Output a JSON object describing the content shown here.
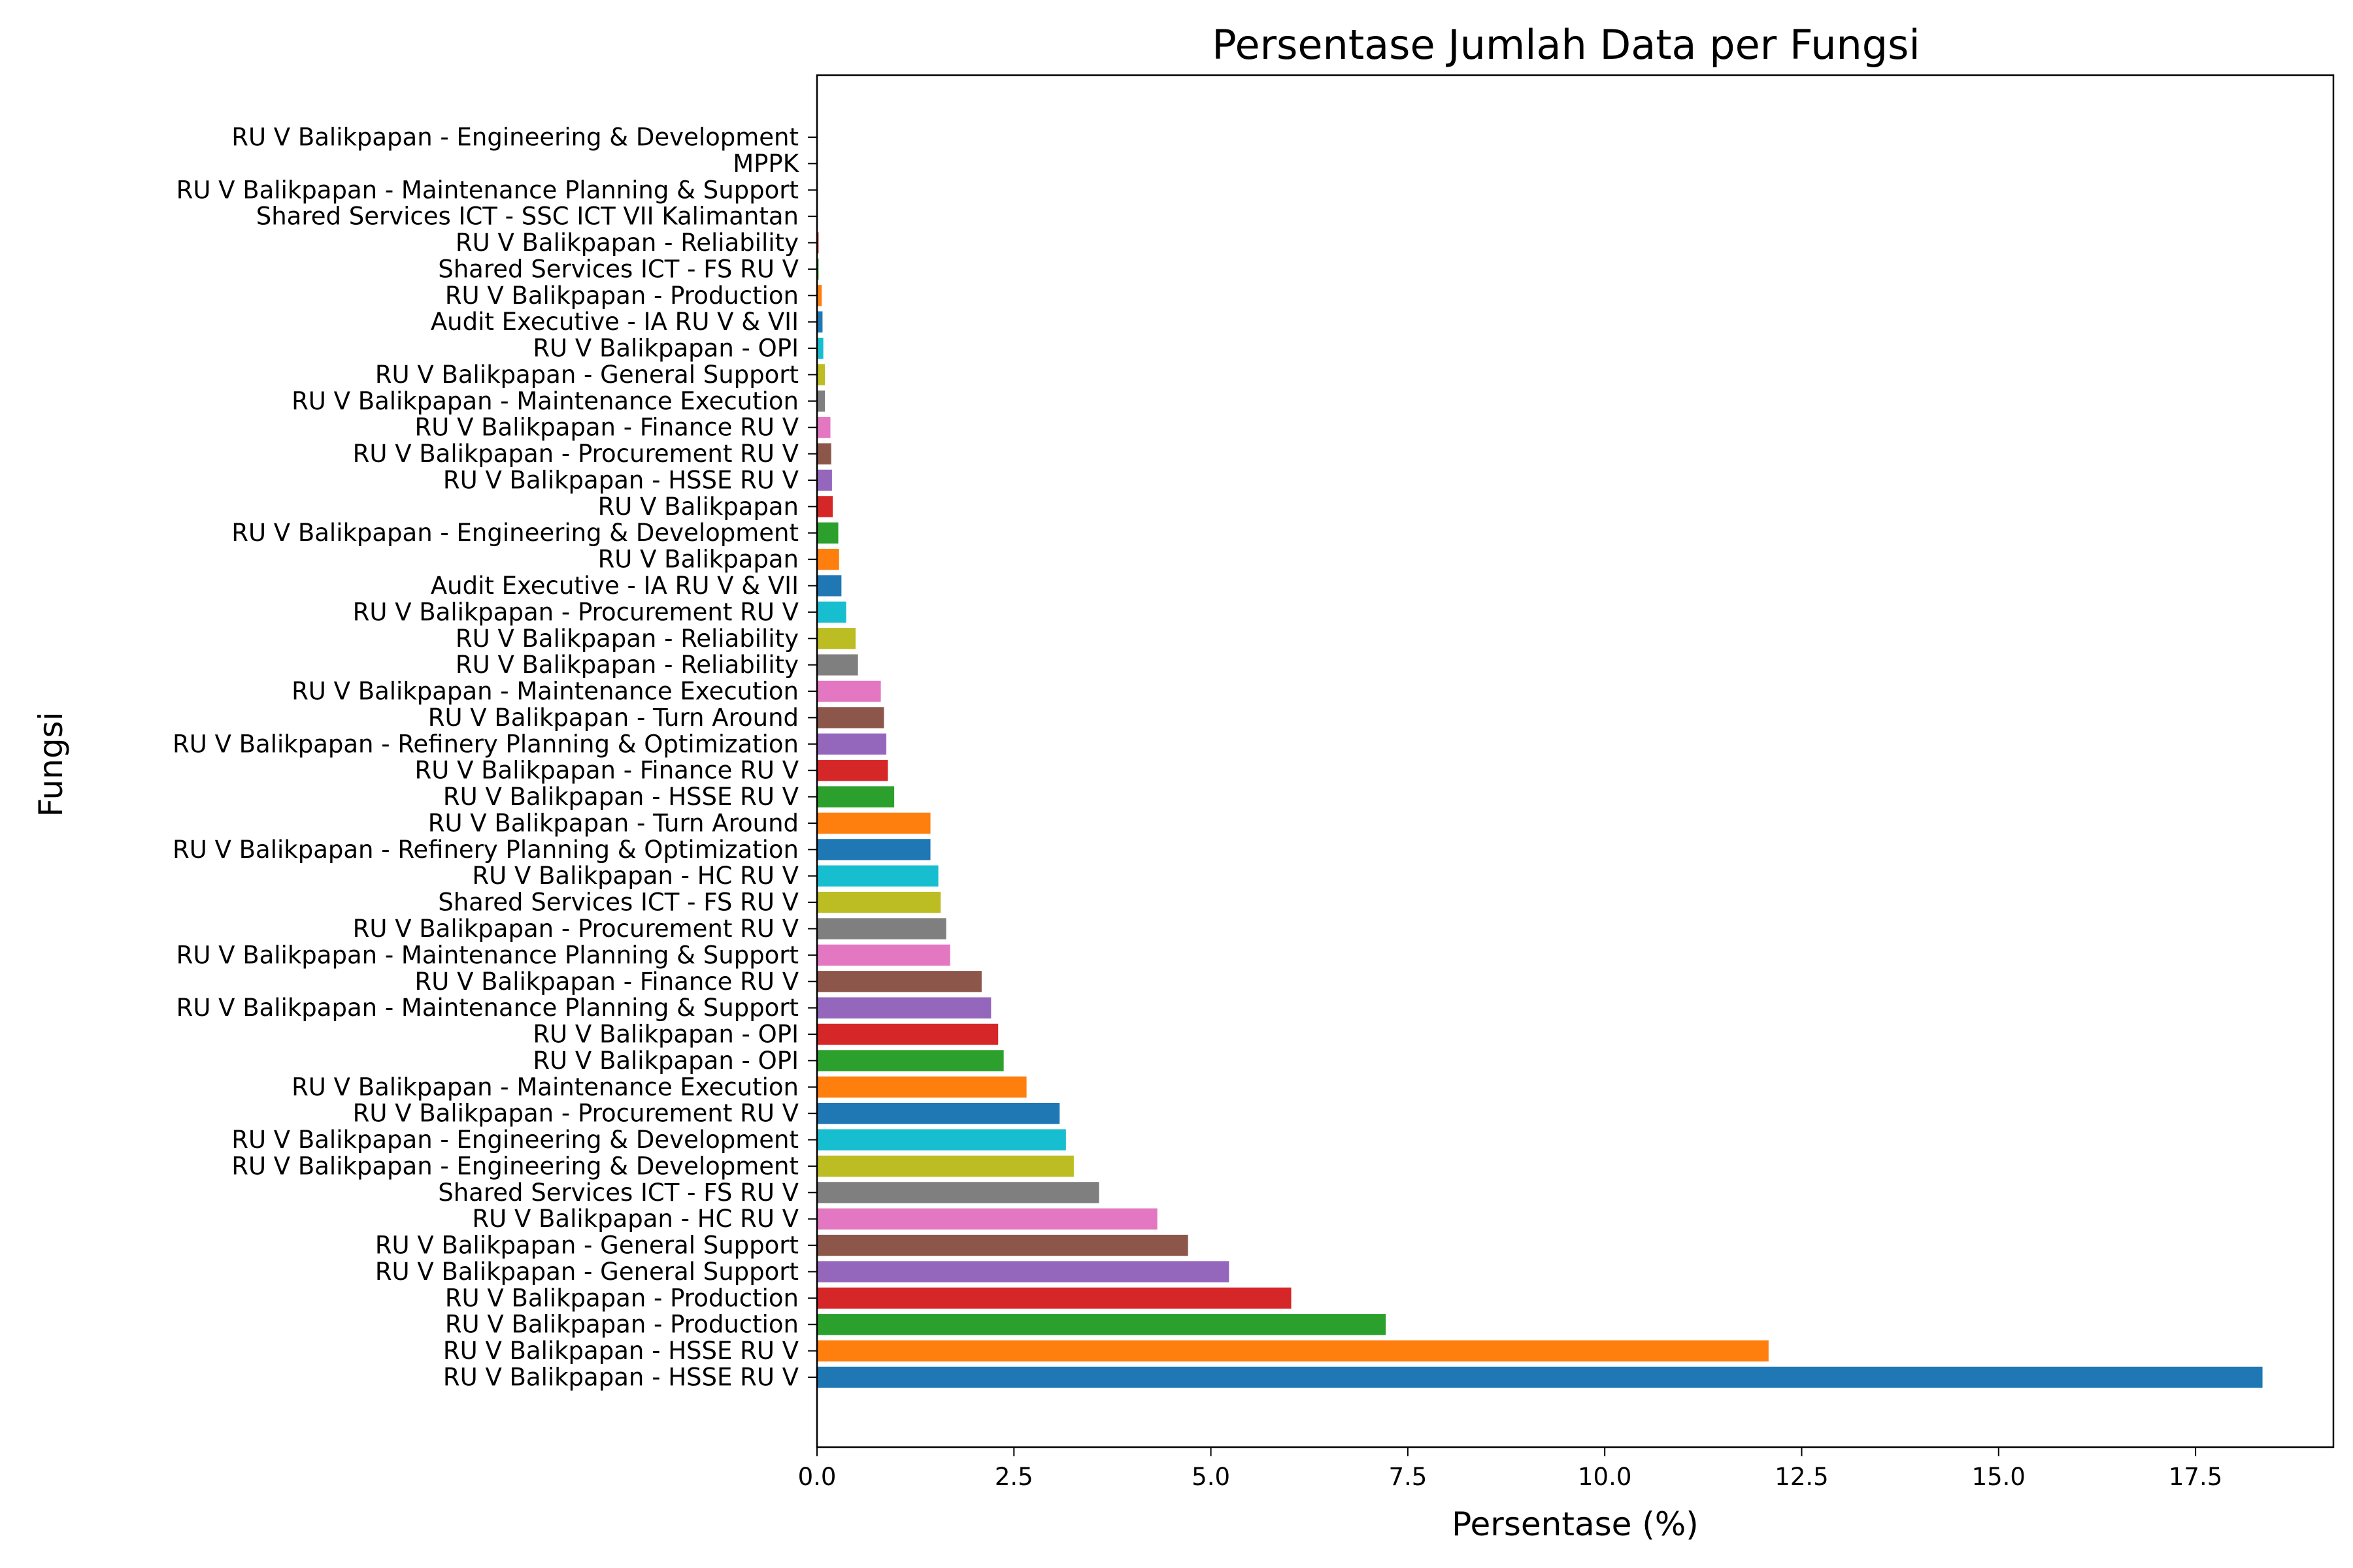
{
  "chart_data": {
    "type": "bar",
    "orientation": "horizontal",
    "title": "Persentase Jumlah Data per Fungsi",
    "xlabel": "Persentase (%)",
    "ylabel": "Fungsi",
    "xlim": [
      0,
      19.25
    ],
    "xticks": [
      0,
      2.5,
      5,
      7.5,
      10,
      12.5,
      15,
      17.5
    ],
    "xtick_labels": [
      "0.0",
      "2.5",
      "5.0",
      "7.5",
      "10.0",
      "12.5",
      "15.0",
      "17.5"
    ],
    "grid": false,
    "legend": false,
    "colors": [
      "#1f77b4",
      "#ff7f0e",
      "#2ca02c",
      "#d62728",
      "#9467bd",
      "#8c564b",
      "#e377c2",
      "#7f7f7f",
      "#bcbd22",
      "#17becf"
    ],
    "categories": [
      "RU V Balikpapan - HSSE RU V",
      "RU V Balikpapan - HSSE RU V",
      "RU V Balikpapan - Production",
      "RU V Balikpapan - Production",
      "RU V Balikpapan - General Support",
      "RU V Balikpapan - General Support",
      "RU V Balikpapan - HC RU V",
      "Shared Services ICT - FS RU V",
      "RU V Balikpapan - Engineering & Development",
      "RU V Balikpapan - Engineering & Development",
      "RU V Balikpapan - Procurement RU V",
      "RU V Balikpapan - Maintenance Execution",
      "RU V Balikpapan - OPI",
      "RU V Balikpapan - OPI",
      "RU V Balikpapan - Maintenance Planning & Support",
      "RU V Balikpapan - Finance RU V",
      "RU V Balikpapan - Maintenance Planning & Support",
      "RU V Balikpapan - Procurement RU V",
      "Shared Services ICT - FS RU V",
      "RU V Balikpapan - HC RU V",
      "RU V Balikpapan - Refinery Planning & Optimization",
      "RU V Balikpapan - Turn Around",
      "RU V Balikpapan - HSSE RU V",
      "RU V Balikpapan - Finance RU V",
      "RU V Balikpapan - Refinery Planning & Optimization",
      "RU V Balikpapan - Turn Around",
      "RU V Balikpapan - Maintenance Execution",
      "RU V Balikpapan - Reliability",
      "RU V Balikpapan - Reliability",
      "RU V Balikpapan - Procurement RU V",
      "Audit Executive - IA RU V & VII",
      "RU V Balikpapan",
      "RU V Balikpapan - Engineering & Development",
      "RU V Balikpapan",
      "RU V Balikpapan - HSSE RU V",
      "RU V Balikpapan - Procurement RU V",
      "RU V Balikpapan - Finance RU V",
      "RU V Balikpapan - Maintenance Execution",
      "RU V Balikpapan - General Support",
      "RU V Balikpapan - OPI",
      "Audit Executive - IA RU V & VII",
      "RU V Balikpapan - Production",
      "Shared Services ICT - FS RU V",
      "RU V Balikpapan - Reliability",
      "Shared Services ICT - SSC ICT VII Kalimantan",
      "RU V Balikpapan - Maintenance Planning & Support",
      "MPPK",
      "RU V Balikpapan - Engineering & Development"
    ],
    "values": [
      18.35,
      12.08,
      7.22,
      6.02,
      5.23,
      4.71,
      4.32,
      3.58,
      3.26,
      3.16,
      3.08,
      2.66,
      2.37,
      2.3,
      2.21,
      2.09,
      1.69,
      1.64,
      1.57,
      1.54,
      1.44,
      1.44,
      0.98,
      0.9,
      0.88,
      0.85,
      0.81,
      0.52,
      0.49,
      0.37,
      0.31,
      0.28,
      0.27,
      0.2,
      0.19,
      0.18,
      0.17,
      0.1,
      0.1,
      0.08,
      0.07,
      0.06,
      0.02,
      0.02,
      0.01,
      0.01,
      0.005,
      0.005
    ]
  }
}
